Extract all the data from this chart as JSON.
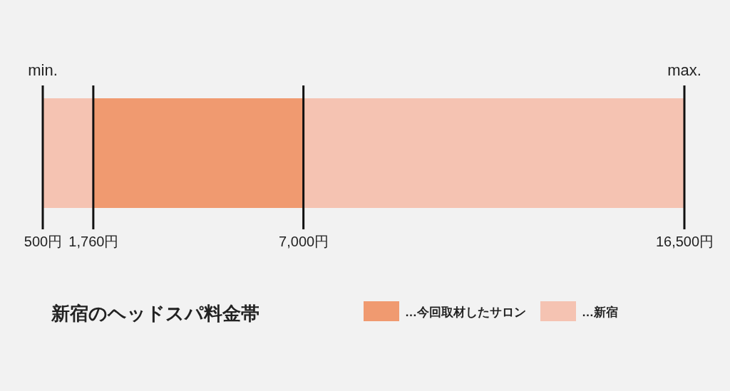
{
  "chart_data": {
    "type": "bar",
    "orientation": "horizontal",
    "title": "新宿のヘッドスパ料金帯",
    "categories": [
      null
    ],
    "series": [
      {
        "name": "…新宿",
        "color": "#f5c3b2",
        "values": [
          16000
        ],
        "base": [
          500
        ]
      },
      {
        "name": "…今回取材したサロン",
        "color": "#f09a70",
        "values": [
          5240
        ],
        "base": [
          1760
        ]
      }
    ],
    "xlim": [
      500,
      16500
    ],
    "xticks": [
      {
        "value": 500,
        "label": "500円"
      },
      {
        "value": 1760,
        "label": "1,760円"
      },
      {
        "value": 7000,
        "label": "7,000円"
      },
      {
        "value": 16500,
        "label": "16,500円"
      }
    ],
    "annotations": [
      "min.",
      "max."
    ],
    "ref_lines": [
      {
        "axis": "x",
        "value": 500,
        "color": "#111111"
      },
      {
        "axis": "x",
        "value": 1760,
        "color": "#111111"
      },
      {
        "axis": "x",
        "value": 7000,
        "color": "#111111"
      },
      {
        "axis": "x",
        "value": 16500,
        "color": "#111111"
      }
    ],
    "legend": "bottom right"
  }
}
